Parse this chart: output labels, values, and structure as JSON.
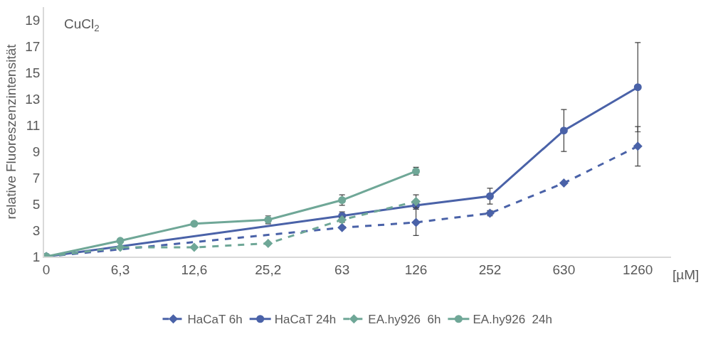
{
  "chart_data": {
    "type": "line",
    "xlabel": "[µM]",
    "ylabel": "relative Fluoreszenzintensität",
    "annotations": [
      "CuCl$_{2}$"
    ],
    "categories": [
      "0",
      "6,3",
      "12,6",
      "25,2",
      "63",
      "126",
      "252",
      "630",
      "1260"
    ],
    "ylim": [
      1,
      20
    ],
    "yticks": [
      1,
      3,
      5,
      7,
      9,
      11,
      13,
      15,
      17,
      19
    ],
    "legend": "bottom",
    "series": [
      {
        "name": "HaCaT 6h",
        "color": "#4a62a8",
        "line_style": "dashed",
        "marker": "diamond",
        "values": [
          1.0,
          null,
          null,
          null,
          3.2,
          3.6,
          4.3,
          6.6,
          9.4
        ],
        "errors": [
          null,
          null,
          null,
          null,
          null,
          1.0,
          0.2,
          null,
          1.5
        ]
      },
      {
        "name": "HaCaT 24h",
        "color": "#4a62a8",
        "line_style": "solid",
        "marker": "circle",
        "values": [
          1.0,
          null,
          null,
          null,
          4.1,
          4.9,
          5.6,
          10.6,
          13.9
        ],
        "errors": [
          null,
          null,
          null,
          null,
          0.3,
          0.3,
          0.6,
          1.6,
          3.4
        ]
      },
      {
        "name": "EA.hy926  6h",
        "color": "#6fa797",
        "line_style": "dashed",
        "marker": "diamond",
        "values": [
          1.0,
          1.7,
          1.7,
          2.0,
          3.8,
          5.2,
          null,
          null,
          null
        ],
        "errors": [
          null,
          null,
          null,
          0.1,
          0.2,
          0.5,
          null,
          null,
          null
        ]
      },
      {
        "name": "EA.hy926  24h",
        "color": "#6fa797",
        "line_style": "solid",
        "marker": "circle",
        "values": [
          1.0,
          2.2,
          3.5,
          3.8,
          5.3,
          7.5,
          null,
          null,
          null
        ],
        "errors": [
          null,
          null,
          null,
          0.3,
          0.4,
          0.3,
          null,
          null,
          null
        ]
      }
    ]
  }
}
